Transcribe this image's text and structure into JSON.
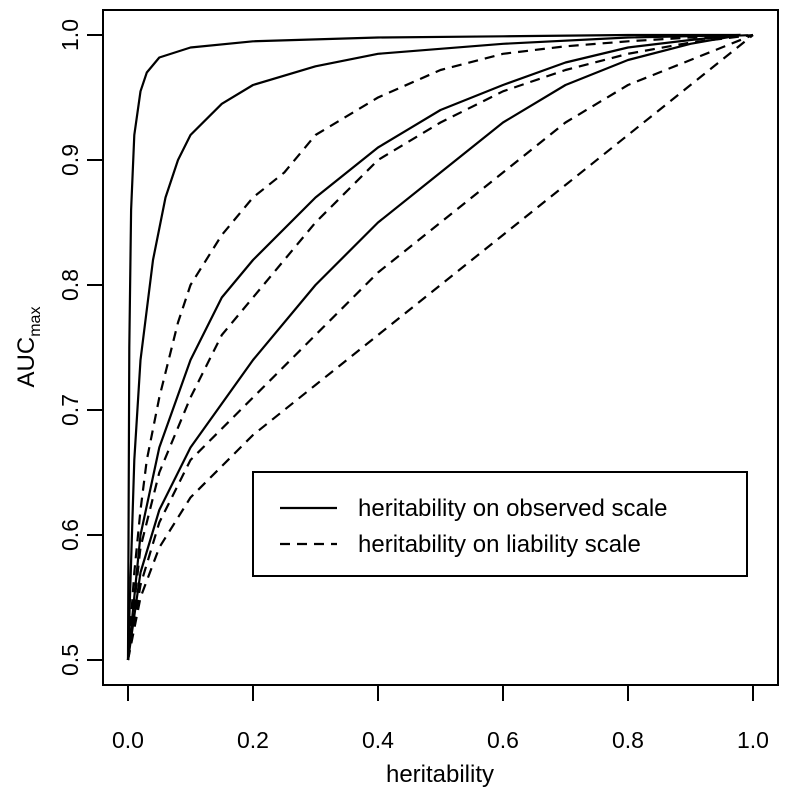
{
  "chart_data": {
    "type": "line",
    "xlabel": "heritability",
    "ylabel": {
      "main": "AUC",
      "subscript": "max"
    },
    "xlim": [
      0,
      1
    ],
    "ylim": [
      0.5,
      1.0
    ],
    "x_ticks": [
      0.0,
      0.2,
      0.4,
      0.6,
      0.8,
      1.0
    ],
    "x_tick_labels": [
      "0.0",
      "0.2",
      "0.4",
      "0.6",
      "0.8",
      "1.0"
    ],
    "y_ticks": [
      0.5,
      0.6,
      0.7,
      0.8,
      0.9,
      1.0
    ],
    "y_tick_labels": [
      "0.5",
      "0.6",
      "0.7",
      "0.8",
      "0.9",
      "1.0"
    ],
    "grid": false,
    "legend_position": "bottom-right",
    "legend": [
      {
        "label": "heritability on observed scale",
        "style": "solid"
      },
      {
        "label": "heritability on liability scale",
        "style": "dashed"
      }
    ],
    "series": [
      {
        "style": "solid",
        "points": [
          [
            0,
            0.5
          ],
          [
            0.002,
            0.75
          ],
          [
            0.005,
            0.86
          ],
          [
            0.01,
            0.92
          ],
          [
            0.02,
            0.955
          ],
          [
            0.03,
            0.97
          ],
          [
            0.05,
            0.982
          ],
          [
            0.1,
            0.99
          ],
          [
            0.2,
            0.995
          ],
          [
            0.4,
            0.998
          ],
          [
            0.6,
            0.999
          ],
          [
            0.8,
            1.0
          ],
          [
            0.98,
            1.0
          ]
        ]
      },
      {
        "style": "solid",
        "points": [
          [
            0,
            0.5
          ],
          [
            0.01,
            0.66
          ],
          [
            0.02,
            0.74
          ],
          [
            0.04,
            0.82
          ],
          [
            0.06,
            0.87
          ],
          [
            0.08,
            0.9
          ],
          [
            0.1,
            0.92
          ],
          [
            0.15,
            0.945
          ],
          [
            0.2,
            0.96
          ],
          [
            0.3,
            0.975
          ],
          [
            0.4,
            0.985
          ],
          [
            0.6,
            0.993
          ],
          [
            0.8,
            0.998
          ],
          [
            0.98,
            1.0
          ]
        ]
      },
      {
        "style": "solid",
        "points": [
          [
            0,
            0.5
          ],
          [
            0.02,
            0.6
          ],
          [
            0.05,
            0.67
          ],
          [
            0.1,
            0.74
          ],
          [
            0.15,
            0.79
          ],
          [
            0.2,
            0.82
          ],
          [
            0.3,
            0.87
          ],
          [
            0.4,
            0.91
          ],
          [
            0.5,
            0.94
          ],
          [
            0.6,
            0.96
          ],
          [
            0.7,
            0.978
          ],
          [
            0.8,
            0.99
          ],
          [
            0.9,
            0.996
          ],
          [
            0.98,
            1.0
          ]
        ]
      },
      {
        "style": "solid",
        "points": [
          [
            0,
            0.5
          ],
          [
            0.02,
            0.57
          ],
          [
            0.05,
            0.62
          ],
          [
            0.1,
            0.67
          ],
          [
            0.2,
            0.74
          ],
          [
            0.3,
            0.8
          ],
          [
            0.4,
            0.85
          ],
          [
            0.5,
            0.89
          ],
          [
            0.6,
            0.93
          ],
          [
            0.7,
            0.96
          ],
          [
            0.8,
            0.98
          ],
          [
            0.9,
            0.993
          ],
          [
            0.98,
            1.0
          ]
        ]
      },
      {
        "style": "dashed",
        "points": [
          [
            0,
            0.5
          ],
          [
            0.01,
            0.57
          ],
          [
            0.02,
            0.62
          ],
          [
            0.03,
            0.66
          ],
          [
            0.05,
            0.71
          ],
          [
            0.08,
            0.77
          ],
          [
            0.1,
            0.8
          ],
          [
            0.15,
            0.84
          ],
          [
            0.2,
            0.87
          ],
          [
            0.25,
            0.89
          ],
          [
            0.3,
            0.92
          ],
          [
            0.4,
            0.95
          ],
          [
            0.5,
            0.972
          ],
          [
            0.6,
            0.985
          ],
          [
            0.7,
            0.991
          ],
          [
            0.8,
            0.995
          ],
          [
            0.9,
            0.998
          ],
          [
            1.0,
            1.0
          ]
        ]
      },
      {
        "style": "dashed",
        "points": [
          [
            0,
            0.5
          ],
          [
            0.02,
            0.59
          ],
          [
            0.05,
            0.65
          ],
          [
            0.1,
            0.71
          ],
          [
            0.15,
            0.76
          ],
          [
            0.2,
            0.79
          ],
          [
            0.3,
            0.85
          ],
          [
            0.4,
            0.9
          ],
          [
            0.5,
            0.93
          ],
          [
            0.6,
            0.955
          ],
          [
            0.7,
            0.972
          ],
          [
            0.8,
            0.985
          ],
          [
            0.9,
            0.994
          ],
          [
            1.0,
            1.0
          ]
        ]
      },
      {
        "style": "dashed",
        "points": [
          [
            0,
            0.5
          ],
          [
            0.02,
            0.56
          ],
          [
            0.05,
            0.61
          ],
          [
            0.1,
            0.66
          ],
          [
            0.2,
            0.71
          ],
          [
            0.3,
            0.76
          ],
          [
            0.4,
            0.81
          ],
          [
            0.5,
            0.85
          ],
          [
            0.6,
            0.89
          ],
          [
            0.7,
            0.93
          ],
          [
            0.8,
            0.96
          ],
          [
            0.9,
            0.98
          ],
          [
            1.0,
            1.0
          ]
        ]
      },
      {
        "style": "dashed",
        "points": [
          [
            0,
            0.5
          ],
          [
            0.02,
            0.55
          ],
          [
            0.05,
            0.59
          ],
          [
            0.1,
            0.63
          ],
          [
            0.2,
            0.68
          ],
          [
            0.3,
            0.72
          ],
          [
            0.4,
            0.76
          ],
          [
            0.5,
            0.8
          ],
          [
            0.6,
            0.84
          ],
          [
            0.7,
            0.88
          ],
          [
            0.8,
            0.92
          ],
          [
            0.9,
            0.96
          ],
          [
            1.0,
            1.0
          ]
        ]
      }
    ]
  }
}
